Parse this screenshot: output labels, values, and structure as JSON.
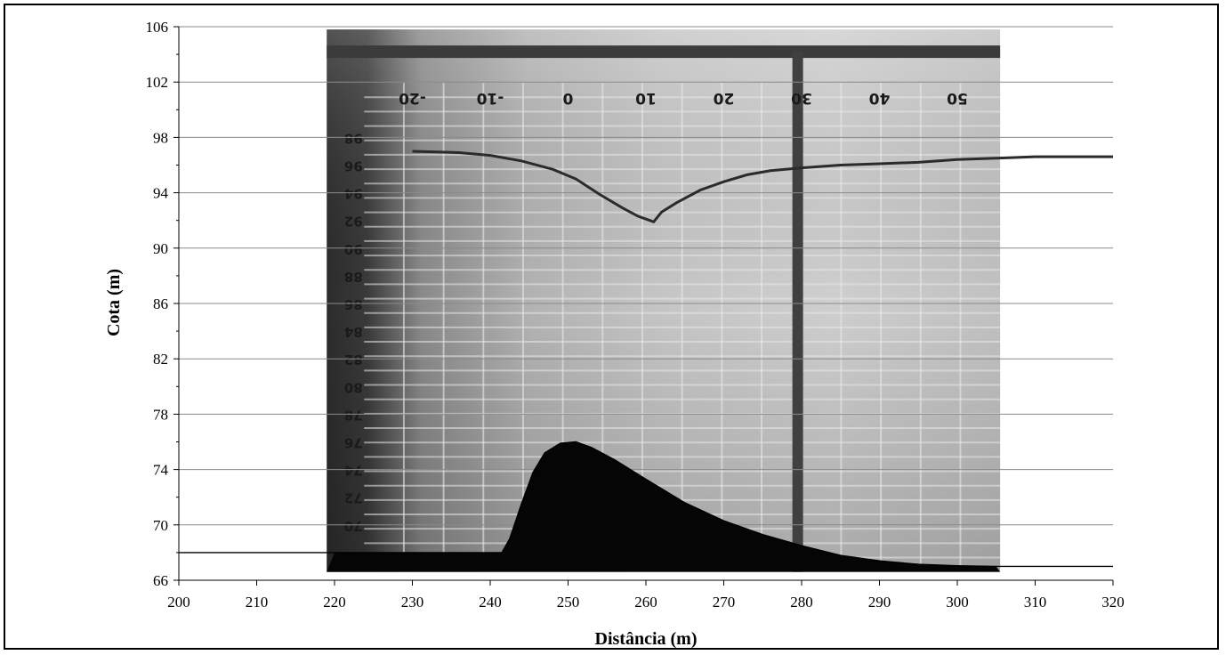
{
  "chart_data": {
    "type": "line",
    "xlabel": "Distância (m)",
    "ylabel": "Cota (m)",
    "xlim": [
      200,
      320
    ],
    "ylim": [
      66,
      106
    ],
    "x_ticks": [
      200,
      210,
      220,
      230,
      240,
      250,
      260,
      270,
      280,
      290,
      300,
      310,
      320
    ],
    "y_ticks": [
      66,
      70,
      74,
      78,
      82,
      86,
      90,
      94,
      98,
      102,
      106
    ],
    "grid": "horizontal",
    "series": [
      {
        "kind": "water_surface",
        "color": "#2b2b2b",
        "points": [
          [
            230,
            97.0
          ],
          [
            236,
            96.9
          ],
          [
            240,
            96.7
          ],
          [
            244,
            96.3
          ],
          [
            248,
            95.7
          ],
          [
            251,
            95.0
          ],
          [
            254,
            93.9
          ],
          [
            257,
            92.9
          ],
          [
            259,
            92.3
          ],
          [
            260.5,
            92.0
          ],
          [
            261,
            91.9
          ],
          [
            262,
            92.6
          ],
          [
            264,
            93.3
          ],
          [
            267,
            94.2
          ],
          [
            270,
            94.8
          ],
          [
            273,
            95.3
          ],
          [
            276,
            95.6
          ],
          [
            280,
            95.8
          ],
          [
            285,
            96.0
          ],
          [
            290,
            96.1
          ],
          [
            295,
            96.2
          ],
          [
            300,
            96.4
          ],
          [
            305,
            96.5
          ],
          [
            310,
            96.6
          ],
          [
            315,
            96.6
          ],
          [
            320,
            96.6
          ]
        ]
      },
      {
        "kind": "bed_profile",
        "color": "#000000",
        "points": [
          [
            200,
            68.0
          ],
          [
            220,
            68.0
          ],
          [
            241.5,
            68.0
          ],
          [
            242.5,
            69.0
          ],
          [
            244,
            71.5
          ],
          [
            245.5,
            73.8
          ],
          [
            247,
            75.2
          ],
          [
            249,
            75.9
          ],
          [
            251,
            76.0
          ],
          [
            253,
            75.6
          ],
          [
            256,
            74.7
          ],
          [
            260,
            73.3
          ],
          [
            265,
            71.6
          ],
          [
            270,
            70.3
          ],
          [
            275,
            69.3
          ],
          [
            280,
            68.5
          ],
          [
            285,
            67.8
          ],
          [
            290,
            67.4
          ],
          [
            295,
            67.15
          ],
          [
            300,
            67.05
          ],
          [
            305,
            67.0
          ],
          [
            320,
            67.0
          ]
        ]
      }
    ],
    "photo_background": {
      "x_range": [
        219,
        305.5
      ],
      "y_range": [
        66.6,
        105.8
      ],
      "scale_labels_top": [
        "-20",
        "-10",
        "0",
        "10",
        "20",
        "30",
        "40",
        "50"
      ],
      "scale_labels_left": [
        "98",
        "96",
        "94",
        "92",
        "90",
        "88",
        "86",
        "84",
        "82",
        "80",
        "78",
        "76",
        "74",
        "72",
        "70"
      ]
    }
  }
}
